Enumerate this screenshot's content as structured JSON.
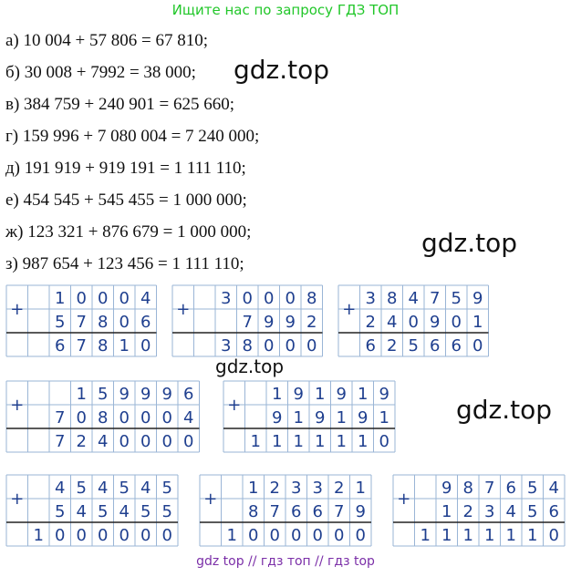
{
  "header": "Ищите нас по запросу ГДЗ ТОП",
  "equations": [
    "а) 10 004 + 57 806 = 67 810;",
    "б) 30 008 + 7992 = 38 000;",
    "в) 384 759 + 240 901 = 625 660;",
    "г) 159 996 + 7 080 004 = 7 240 000;",
    "д) 191 919 + 919 191 = 1 111 110;",
    "е) 454 545 + 545 455 = 1 000 000;",
    "ж) 123 321 + 876 679 = 1 000 000;",
    "з) 987 654 + 123 456 = 1 111 110;"
  ],
  "watermarks": [
    "gdz.top",
    "gdz.top",
    "gdz.top",
    "gdz.top"
  ],
  "footer": "gdz top  //  гдз топ  //  гдз top",
  "columns": [
    {
      "a": "10004",
      "b": "57806",
      "s": "67810"
    },
    {
      "a": "30008",
      "b": "7992",
      "s": "38000"
    },
    {
      "a": "384759",
      "b": "240901",
      "s": "625660"
    },
    {
      "a": "159996",
      "b": "7080004",
      "s": "7240000"
    },
    {
      "a": "191919",
      "b": "919191",
      "s": "1111110"
    },
    {
      "a": "454545",
      "b": "545455",
      "s": "1000000"
    },
    {
      "a": "123321",
      "b": "876679",
      "s": "1000000"
    },
    {
      "a": "987654",
      "b": "123456",
      "s": "1111110"
    }
  ],
  "plus_sign": "+",
  "grid_color": "#9ab5d6",
  "digit_color": "#1f3f8f"
}
